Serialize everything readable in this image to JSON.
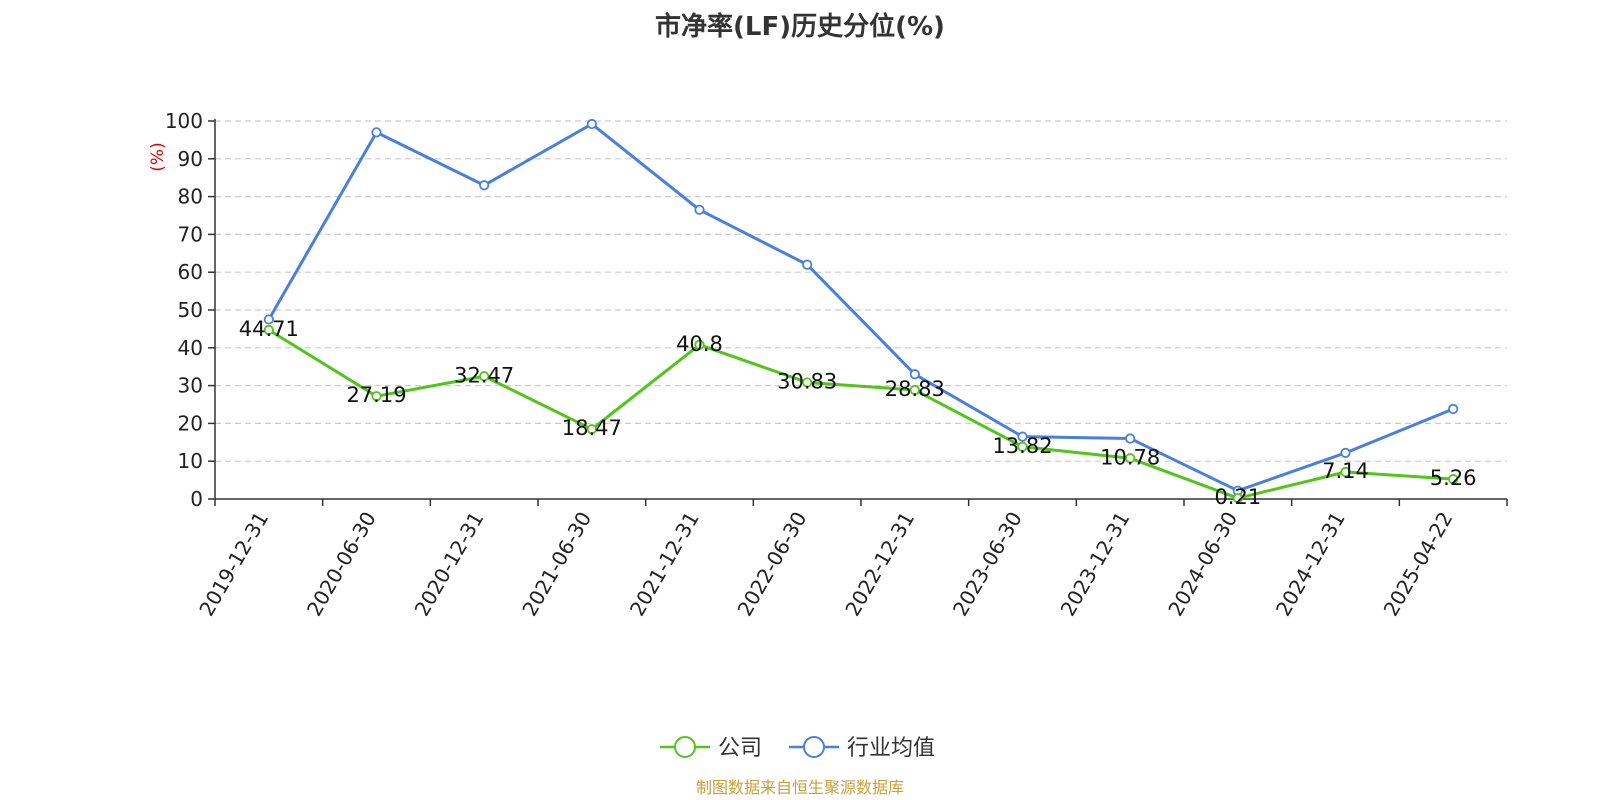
{
  "chart_data": {
    "type": "line",
    "title": "市净率(LF)历史分位(%)",
    "ylabel": "(%)",
    "xlabel": "",
    "ylim": [
      0,
      100
    ],
    "yticks": [
      0,
      10,
      20,
      30,
      40,
      50,
      60,
      70,
      80,
      90,
      100
    ],
    "categories": [
      "2019-12-31",
      "2020-06-30",
      "2020-12-31",
      "2021-06-30",
      "2021-12-31",
      "2022-06-30",
      "2022-12-31",
      "2023-06-30",
      "2023-12-31",
      "2024-06-30",
      "2024-12-31",
      "2025-04-22"
    ],
    "grid": "horizontal dashed",
    "legend_position": "bottom-center",
    "series": [
      {
        "name": "公司",
        "color": "#52c41a",
        "values": [
          44.71,
          27.19,
          32.47,
          18.47,
          40.8,
          30.83,
          28.83,
          13.82,
          10.78,
          0.21,
          7.14,
          5.26
        ],
        "labels": [
          "44.71",
          "27.19",
          "32.47",
          "18.47",
          "40.8",
          "30.83",
          "28.83",
          "13.82",
          "10.78",
          "0.21",
          "7.14",
          "5.26"
        ]
      },
      {
        "name": "行业均值",
        "color": "#4a7fe0",
        "values": [
          47.5,
          97,
          83,
          99.2,
          76.5,
          62,
          33,
          16.5,
          16,
          2.2,
          12.2,
          23.8
        ]
      }
    ]
  },
  "source": "制图数据来自恒生聚源数据库"
}
